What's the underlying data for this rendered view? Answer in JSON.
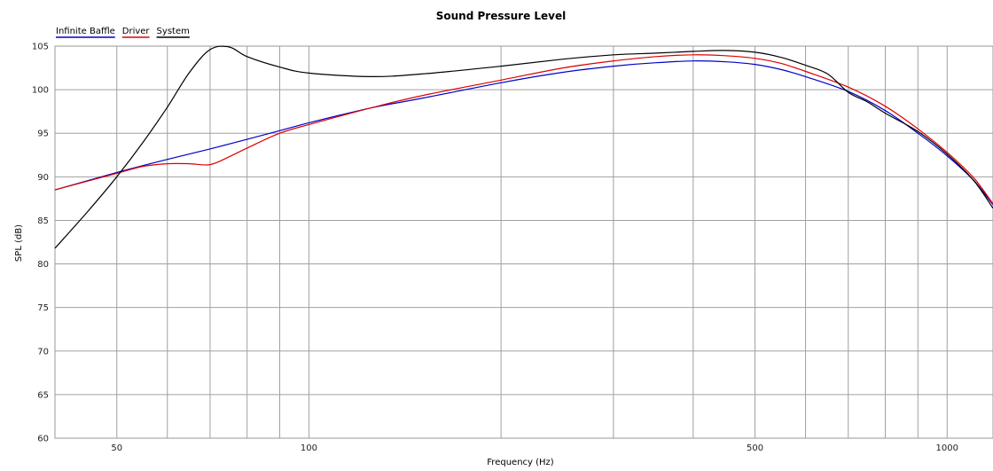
{
  "chart_data": {
    "type": "line",
    "title": "Sound Pressure Level",
    "xlabel": "Frequency (Hz)",
    "ylabel": "SPL (dB)",
    "xscale": "log",
    "xlim": [
      40,
      1180
    ],
    "ylim": [
      60,
      105
    ],
    "x_tick_labels": [
      50,
      100,
      500,
      1000
    ],
    "x_minor_gridlines": [
      60,
      70,
      80,
      90,
      200,
      300,
      400,
      600,
      700,
      800,
      900
    ],
    "y_ticks": [
      60,
      65,
      70,
      75,
      80,
      85,
      90,
      95,
      100,
      105
    ],
    "grid": true,
    "legend_position": "top-left",
    "series": [
      {
        "name": "Infinite Baffle",
        "color": "#0000cc",
        "x": [
          40,
          50,
          60,
          70,
          80,
          90,
          100,
          125,
          150,
          200,
          250,
          300,
          350,
          400,
          450,
          500,
          550,
          600,
          700,
          800,
          900,
          1000,
          1100,
          1180
        ],
        "y": [
          88.5,
          90.5,
          92.0,
          93.2,
          94.3,
          95.3,
          96.2,
          97.9,
          99.0,
          100.8,
          102.0,
          102.7,
          103.1,
          103.3,
          103.2,
          102.9,
          102.3,
          101.5,
          99.8,
          97.6,
          95.0,
          92.4,
          89.6,
          86.8
        ]
      },
      {
        "name": "Driver",
        "color": "#dd0000",
        "x": [
          40,
          50,
          55,
          60,
          65,
          70,
          75,
          80,
          90,
          100,
          125,
          150,
          200,
          250,
          300,
          350,
          400,
          450,
          500,
          550,
          600,
          700,
          800,
          900,
          1000,
          1100,
          1180
        ],
        "y": [
          88.5,
          90.4,
          91.2,
          91.5,
          91.5,
          91.4,
          92.3,
          93.3,
          95.0,
          96.0,
          97.9,
          99.3,
          101.1,
          102.5,
          103.3,
          103.8,
          104.0,
          103.9,
          103.6,
          103.0,
          102.1,
          100.3,
          98.1,
          95.5,
          92.8,
          89.9,
          86.9
        ]
      },
      {
        "name": "System",
        "color": "#000000",
        "x": [
          40,
          45,
          50,
          55,
          60,
          65,
          70,
          75,
          80,
          90,
          100,
          125,
          150,
          200,
          250,
          300,
          350,
          400,
          450,
          500,
          550,
          600,
          650,
          700,
          750,
          800,
          900,
          1000,
          1100,
          1180
        ],
        "y": [
          81.8,
          86.0,
          90.0,
          94.0,
          98.0,
          102.0,
          104.6,
          104.9,
          103.8,
          102.6,
          101.9,
          101.5,
          101.8,
          102.7,
          103.5,
          104.0,
          104.2,
          104.4,
          104.5,
          104.3,
          103.7,
          102.8,
          101.8,
          99.7,
          98.6,
          97.3,
          95.2,
          92.6,
          89.6,
          86.4
        ]
      }
    ]
  }
}
